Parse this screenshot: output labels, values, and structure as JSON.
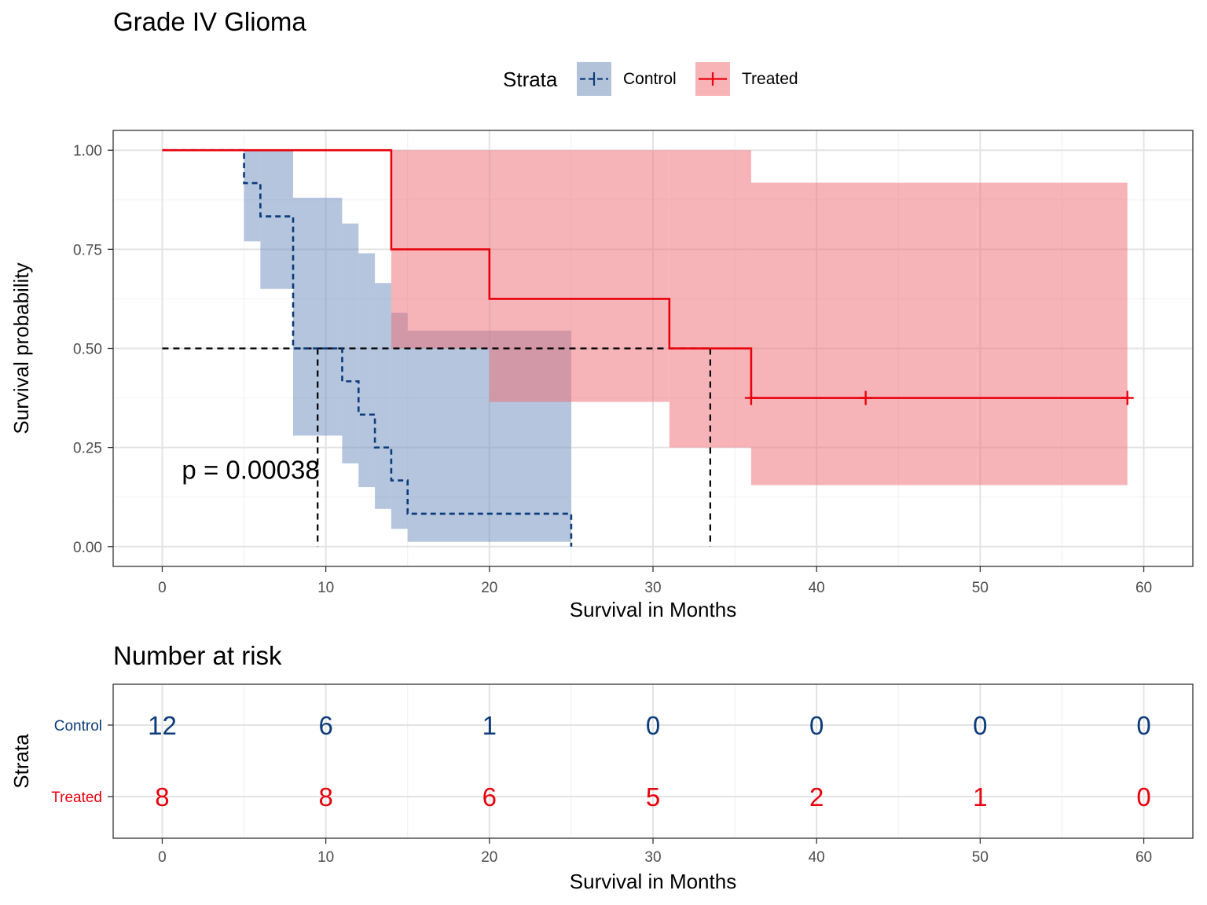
{
  "chart_data": [
    {
      "type": "line",
      "subtype": "kaplan-meier",
      "title": "Grade IV Glioma",
      "xlabel": "Survival in Months",
      "ylabel": "Survival probability",
      "xlim": [
        -3,
        63
      ],
      "ylim": [
        -0.05,
        1.05
      ],
      "x_ticks": [
        0,
        10,
        20,
        30,
        40,
        50,
        60
      ],
      "y_ticks": [
        0.0,
        0.25,
        0.5,
        0.75,
        1.0
      ],
      "y_tick_labels": [
        "0.00",
        "0.25",
        "0.50",
        "0.75",
        "1.00"
      ],
      "grid": true,
      "legend": {
        "title": "Strata",
        "position": "top",
        "entries": [
          "Control",
          "Treated"
        ]
      },
      "annotation": {
        "text": "p = 0.00038",
        "x": 1.2,
        "y": 0.195
      },
      "median_survival": {
        "y": 0.5,
        "x_values": [
          9.5,
          33.5
        ]
      },
      "series": [
        {
          "name": "Control",
          "color": "#0b3b7a",
          "linestyle": "dashed",
          "steps": [
            [
              0,
              1.0
            ],
            [
              5,
              0.917
            ],
            [
              6,
              0.833
            ],
            [
              8,
              0.5
            ],
            [
              11,
              0.417
            ],
            [
              12,
              0.333
            ],
            [
              13,
              0.25
            ],
            [
              14,
              0.167
            ],
            [
              15,
              0.083
            ],
            [
              25,
              0.0
            ]
          ],
          "end_x": 25,
          "censored": [],
          "ci": [
            [
              0,
              1.0,
              1.0
            ],
            [
              5,
              0.77,
              1.0
            ],
            [
              6,
              0.65,
              1.0
            ],
            [
              8,
              0.28,
              0.88
            ],
            [
              11,
              0.21,
              0.815
            ],
            [
              12,
              0.15,
              0.74
            ],
            [
              13,
              0.095,
              0.665
            ],
            [
              14,
              0.045,
              0.59
            ],
            [
              15,
              0.012,
              0.545
            ],
            [
              25,
              0.012,
              0.545
            ]
          ],
          "ci_color": "#7090bd"
        },
        {
          "name": "Treated",
          "color": "#e8000b",
          "linestyle": "solid",
          "steps": [
            [
              0,
              1.0
            ],
            [
              14,
              0.75
            ],
            [
              20,
              0.625
            ],
            [
              31,
              0.5
            ],
            [
              36,
              0.375
            ]
          ],
          "end_x": 59,
          "censored": [
            36,
            43,
            59
          ],
          "ci": [
            [
              0,
              1.0,
              1.0
            ],
            [
              14,
              0.5,
              1.0
            ],
            [
              20,
              0.365,
              1.0
            ],
            [
              31,
              0.25,
              1.0
            ],
            [
              36,
              0.155,
              0.918
            ],
            [
              59,
              0.155,
              0.918
            ]
          ],
          "ci_color": "#ef6f77"
        }
      ]
    },
    {
      "type": "table",
      "title": "Number at risk",
      "xlabel": "Survival in Months",
      "ylabel": "Strata",
      "x_ticks": [
        0,
        10,
        20,
        30,
        40,
        50,
        60
      ],
      "rows": [
        {
          "name": "Control",
          "color": "#0b3b7a",
          "values": [
            12,
            6,
            1,
            0,
            0,
            0,
            0
          ]
        },
        {
          "name": "Treated",
          "color": "#e8000b",
          "values": [
            8,
            8,
            6,
            5,
            2,
            1,
            0
          ]
        }
      ]
    }
  ]
}
